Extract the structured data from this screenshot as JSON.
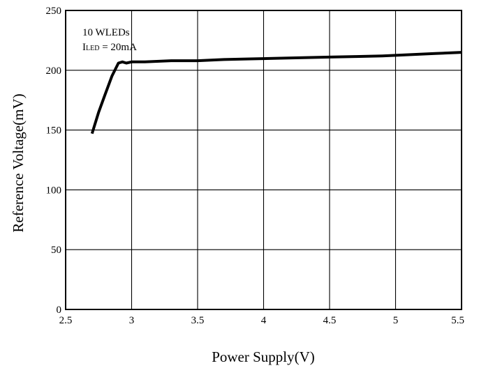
{
  "chart_data": {
    "type": "line",
    "title": "",
    "xlabel": "Power Supply(V)",
    "ylabel": "Reference Voltage(mV)",
    "xlim": [
      2.5,
      5.5
    ],
    "ylim": [
      0,
      250
    ],
    "x_ticks": [
      2.5,
      3,
      3.5,
      4,
      4.5,
      5,
      5.5
    ],
    "x_tick_labels": [
      "2.5",
      "3",
      "3.5",
      "4",
      "4.5",
      "5",
      "5.5"
    ],
    "y_ticks": [
      0,
      50,
      100,
      150,
      200,
      250
    ],
    "y_tick_labels": [
      "0",
      "50",
      "100",
      "150",
      "200",
      "250"
    ],
    "grid": true,
    "annotation": {
      "line1": "10 WLEDs",
      "line2_main": "I",
      "line2_sub": "LED",
      "line2_rest": " = 20mA"
    },
    "series": [
      {
        "x": [
          2.7,
          2.75,
          2.8,
          2.85,
          2.9,
          2.93,
          2.96,
          3.0,
          3.1,
          3.3,
          3.5,
          3.7,
          3.9,
          4.1,
          4.3,
          4.5,
          4.7,
          4.9,
          5.1,
          5.3,
          5.5
        ],
        "y": [
          147,
          165,
          180,
          195,
          206,
          207,
          206,
          207,
          207,
          208,
          208,
          209,
          209.5,
          210,
          210.5,
          211,
          211.5,
          212,
          213,
          214,
          215
        ]
      }
    ]
  }
}
